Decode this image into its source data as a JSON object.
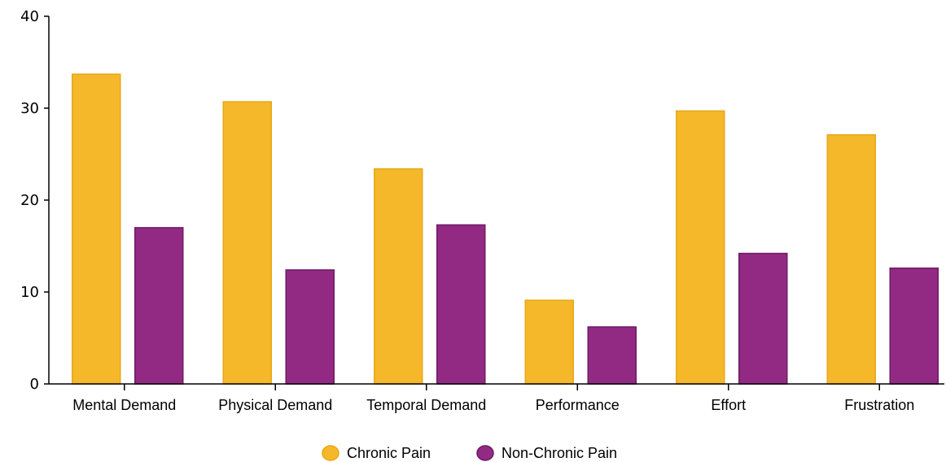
{
  "chart_data": {
    "type": "bar",
    "title": "",
    "xlabel": "",
    "ylabel": "",
    "categories": [
      "Mental Demand",
      "Physical Demand",
      "Temporal Demand",
      "Performance",
      "Effort",
      "Frustration"
    ],
    "series": [
      {
        "name": "Chronic Pain",
        "color": "#F5B82A",
        "stroke": "#E6A817",
        "values": [
          33.7,
          30.7,
          23.4,
          9.1,
          29.7,
          27.1
        ]
      },
      {
        "name": "Non-Chronic Pain",
        "color": "#922A84",
        "stroke": "#6E1A64",
        "values": [
          17.0,
          12.4,
          17.3,
          6.2,
          14.2,
          12.6
        ]
      }
    ],
    "ylim": [
      0,
      40
    ],
    "yticks": [
      0,
      10,
      20,
      30,
      40
    ],
    "grid": false,
    "legend_position": "bottom-center"
  }
}
